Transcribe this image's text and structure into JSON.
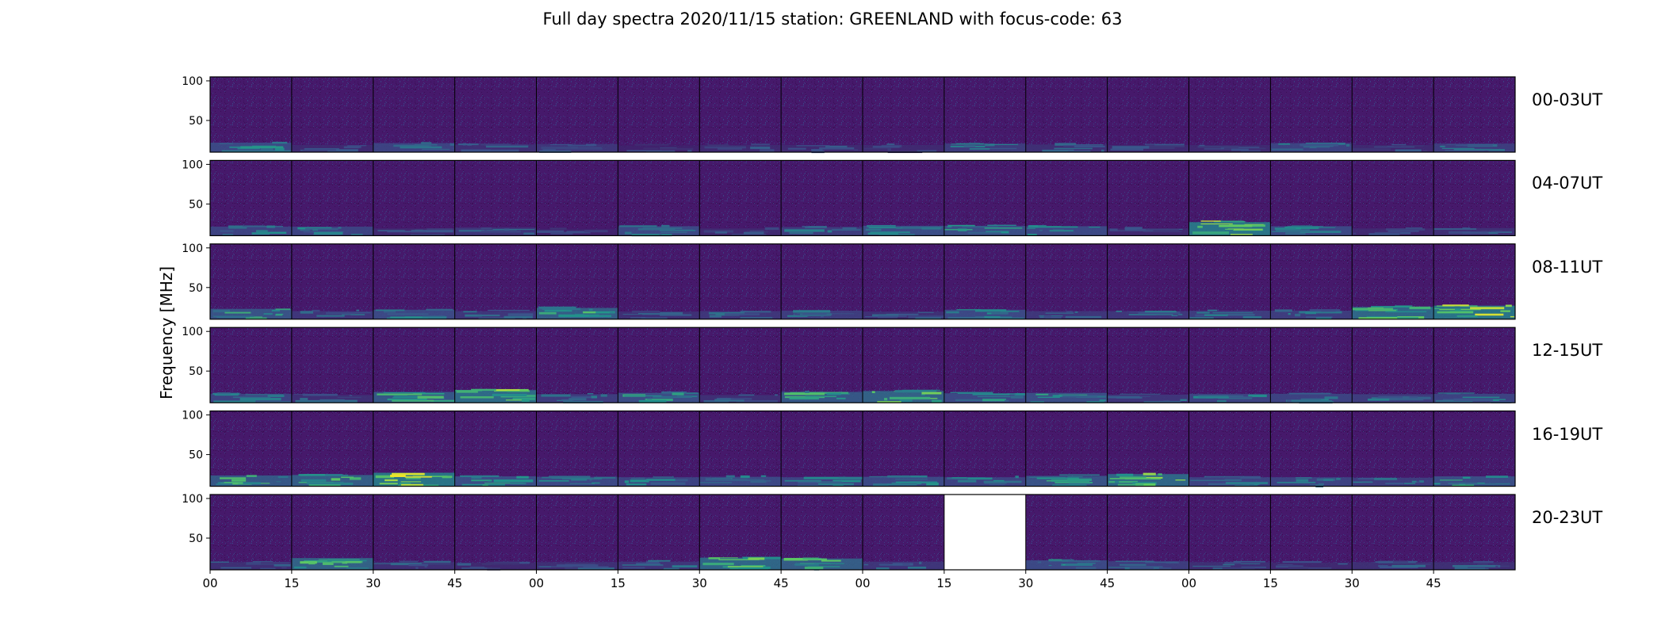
{
  "chart_data": {
    "type": "heatmap",
    "title": "Full day spectra 2020/11/15 station: GREENLAND with focus-code: 63",
    "ylabel": "Frequency [MHz]",
    "xlabel": "",
    "ylim": [
      10,
      105
    ],
    "ytick_labels": [
      "100",
      "50"
    ],
    "ytick_values": [
      100,
      50
    ],
    "xtick_labels": [
      "00",
      "15",
      "30",
      "45",
      "00",
      "15",
      "30",
      "45",
      "00",
      "15",
      "30",
      "45",
      "00",
      "15",
      "30",
      "45"
    ],
    "colormap": "viridis",
    "rows": [
      {
        "label": "00-03UT",
        "active_bands": [
          [
            0,
            0.55
          ],
          [
            1,
            0.3
          ],
          [
            2,
            0.5
          ],
          [
            3,
            0.35
          ],
          [
            4,
            0.4
          ],
          [
            5,
            0.25
          ],
          [
            6,
            0.3
          ],
          [
            7,
            0.3
          ],
          [
            8,
            0.3
          ],
          [
            9,
            0.45
          ],
          [
            10,
            0.35
          ],
          [
            11,
            0.3
          ],
          [
            12,
            0.3
          ],
          [
            13,
            0.5
          ],
          [
            14,
            0.3
          ],
          [
            15,
            0.45
          ]
        ]
      },
      {
        "label": "04-07UT",
        "active_bands": [
          [
            0,
            0.5
          ],
          [
            1,
            0.5
          ],
          [
            2,
            0.3
          ],
          [
            3,
            0.4
          ],
          [
            4,
            0.25
          ],
          [
            5,
            0.55
          ],
          [
            6,
            0.3
          ],
          [
            7,
            0.45
          ],
          [
            8,
            0.6
          ],
          [
            9,
            0.6
          ],
          [
            10,
            0.55
          ],
          [
            11,
            0.3
          ],
          [
            12,
            1.0
          ],
          [
            13,
            0.55
          ],
          [
            14,
            0.3
          ],
          [
            15,
            0.35
          ]
        ]
      },
      {
        "label": "08-11UT",
        "active_bands": [
          [
            0,
            0.65
          ],
          [
            1,
            0.4
          ],
          [
            2,
            0.55
          ],
          [
            3,
            0.4
          ],
          [
            4,
            0.75
          ],
          [
            5,
            0.35
          ],
          [
            6,
            0.4
          ],
          [
            7,
            0.45
          ],
          [
            8,
            0.35
          ],
          [
            9,
            0.55
          ],
          [
            10,
            0.4
          ],
          [
            11,
            0.4
          ],
          [
            12,
            0.45
          ],
          [
            13,
            0.45
          ],
          [
            14,
            0.85
          ],
          [
            15,
            1.0
          ]
        ]
      },
      {
        "label": "12-15UT",
        "active_bands": [
          [
            0,
            0.5
          ],
          [
            1,
            0.35
          ],
          [
            2,
            0.7
          ],
          [
            3,
            0.9
          ],
          [
            4,
            0.45
          ],
          [
            5,
            0.6
          ],
          [
            6,
            0.35
          ],
          [
            7,
            0.7
          ],
          [
            8,
            0.8
          ],
          [
            9,
            0.55
          ],
          [
            10,
            0.6
          ],
          [
            11,
            0.4
          ],
          [
            12,
            0.5
          ],
          [
            13,
            0.5
          ],
          [
            14,
            0.45
          ],
          [
            15,
            0.5
          ]
        ]
      },
      {
        "label": "16-19UT",
        "active_bands": [
          [
            0,
            0.7
          ],
          [
            1,
            0.75
          ],
          [
            2,
            1.0
          ],
          [
            3,
            0.6
          ],
          [
            4,
            0.55
          ],
          [
            5,
            0.5
          ],
          [
            6,
            0.55
          ],
          [
            7,
            0.5
          ],
          [
            8,
            0.55
          ],
          [
            9,
            0.5
          ],
          [
            10,
            0.65
          ],
          [
            11,
            0.85
          ],
          [
            12,
            0.5
          ],
          [
            13,
            0.5
          ],
          [
            14,
            0.45
          ],
          [
            15,
            0.6
          ]
        ]
      },
      {
        "label": "20-23UT",
        "active_bands": [
          [
            0,
            0.35
          ],
          [
            1,
            0.8
          ],
          [
            2,
            0.35
          ],
          [
            3,
            0.3
          ],
          [
            4,
            0.35
          ],
          [
            5,
            0.4
          ],
          [
            6,
            0.85
          ],
          [
            7,
            0.75
          ],
          [
            8,
            0.4
          ],
          [
            9,
            null
          ],
          [
            10,
            0.55
          ],
          [
            11,
            0.45
          ],
          [
            12,
            0.35
          ],
          [
            13,
            0.3
          ],
          [
            14,
            0.35
          ],
          [
            15,
            0.35
          ]
        ]
      }
    ],
    "missing_panels": [
      [
        5,
        9
      ]
    ],
    "grid": false,
    "legend": "none"
  }
}
